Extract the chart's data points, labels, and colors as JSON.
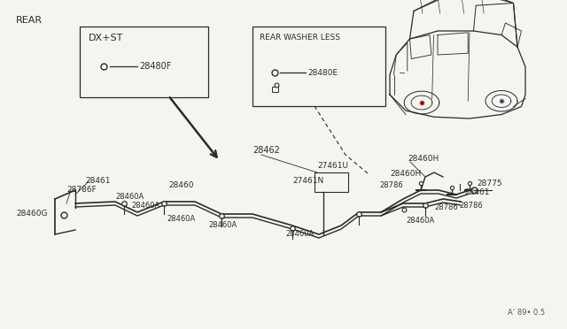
{
  "bg_color": "#f5f5f0",
  "line_color": "#2a2a2a",
  "text_color": "#2a2a2a",
  "title": "REAR",
  "watermark": "A’ 89• 0.5",
  "box1_label": "DX+ST",
  "box1_part": "28480F",
  "box2_label": "REAR WASHER LESS",
  "box2_part": "28480E",
  "fig_width": 6.4,
  "fig_height": 3.72,
  "dpi": 100
}
